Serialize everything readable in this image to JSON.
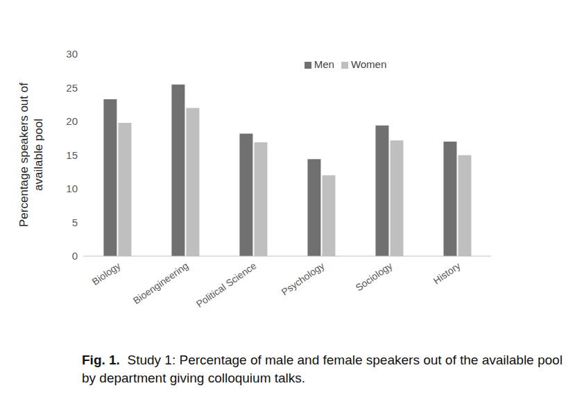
{
  "chart_data": {
    "type": "bar",
    "categories": [
      "Biology",
      "Bioengineering",
      "Political Science",
      "Psychology",
      "Sociology",
      "History"
    ],
    "series": [
      {
        "name": "Men",
        "color": "#707070",
        "values": [
          23.3,
          25.5,
          18.2,
          14.4,
          19.4,
          17.0
        ]
      },
      {
        "name": "Women",
        "color": "#bfbfbf",
        "values": [
          19.8,
          22.0,
          16.9,
          12.0,
          17.2,
          15.0
        ]
      }
    ],
    "y_label": "Percentage speakers out of available pool",
    "ylim": [
      0,
      30
    ],
    "yticks": [
      0,
      5,
      10,
      15,
      20,
      25,
      30
    ],
    "grid": false,
    "legend": "top",
    "caption": {
      "label": "Fig. 1.",
      "text": "Study 1: Percentage of male and female speakers out of the available pool by department giving colloquium talks."
    }
  }
}
